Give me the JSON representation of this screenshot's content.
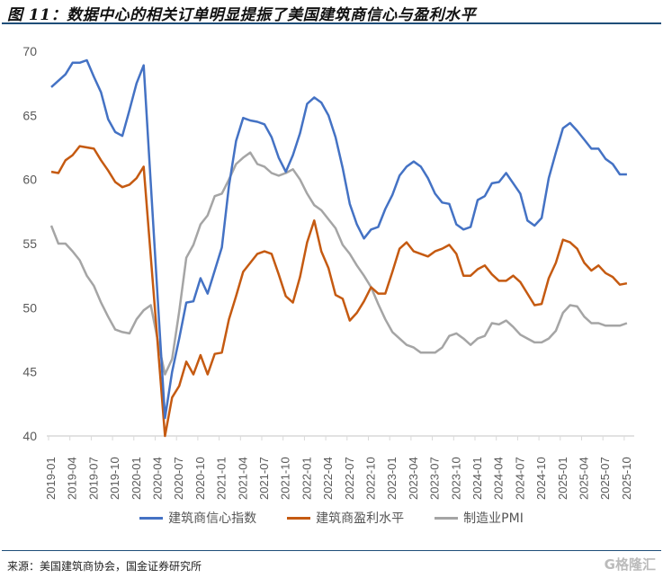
{
  "title": "图 11：数据中心的相关订单明显提振了美国建筑商信心与盈利水平",
  "source": "来源：美国建筑商协会，国金证券研究所",
  "watermark": "格隆汇",
  "chart_data": {
    "type": "line",
    "title": "",
    "xlabel": "",
    "ylabel": "",
    "ylim": [
      40,
      70
    ],
    "yticks": [
      "40",
      "45",
      "50",
      "55",
      "60",
      "65",
      "70"
    ],
    "grid": false,
    "legend_position": "bottom",
    "x_start": "2019-01",
    "x_tick_labels": [
      "2019-01",
      "2019-04",
      "2019-07",
      "2019-10",
      "2020-01",
      "2020-04",
      "2020-07",
      "2020-10",
      "2021-01",
      "2021-04",
      "2021-07",
      "2021-10",
      "2022-01",
      "2022-04",
      "2022-07",
      "2022-10",
      "2023-01",
      "2023-04",
      "2023-07",
      "2023-10",
      "2024-01",
      "2024-04",
      "2024-07",
      "2024-10",
      "2025-01",
      "2025-04",
      "2025-07",
      "2025-10"
    ],
    "series": [
      {
        "name": "建筑商信心指数",
        "color": "#4472C4",
        "values": [
          67.2,
          67.7,
          68.2,
          69.1,
          69.1,
          69.3,
          68.0,
          66.8,
          64.7,
          63.7,
          63.4,
          65.4,
          67.5,
          68.9,
          59.7,
          50.5,
          41.4,
          45.0,
          47.6,
          50.4,
          50.5,
          52.3,
          51.1,
          52.9,
          54.7,
          59.5,
          63.0,
          64.8,
          64.6,
          64.5,
          64.3,
          63.3,
          61.7,
          60.6,
          61.9,
          63.6,
          65.9,
          66.4,
          66.0,
          65.0,
          63.3,
          60.9,
          58.1,
          56.5,
          55.4,
          56.1,
          56.3,
          57.7,
          58.8,
          60.3,
          61.0,
          61.4,
          61.0,
          60.1,
          58.9,
          58.2,
          58.1,
          56.5,
          56.1,
          56.3,
          58.4,
          58.7,
          59.7,
          59.8,
          60.5,
          59.7,
          58.9,
          56.8,
          56.4,
          57.0,
          60.1,
          62.1,
          64.0,
          64.4,
          63.8,
          63.1,
          62.4,
          62.4,
          61.6,
          61.2,
          60.4,
          60.4
        ]
      },
      {
        "name": "建筑商盈利水平",
        "color": "#C55A11",
        "values": [
          60.6,
          60.5,
          61.5,
          61.9,
          62.6,
          62.5,
          62.4,
          61.5,
          60.7,
          59.8,
          59.4,
          59.6,
          60.1,
          61.0,
          54.0,
          47.0,
          40.0,
          43.0,
          43.9,
          45.8,
          44.8,
          46.3,
          44.8,
          46.4,
          46.5,
          49.1,
          50.9,
          52.8,
          53.5,
          54.2,
          54.4,
          54.2,
          52.6,
          50.9,
          50.4,
          52.4,
          55.1,
          56.8,
          54.4,
          53.1,
          51.0,
          50.7,
          49.0,
          49.6,
          50.5,
          51.6,
          51.1,
          51.1,
          52.8,
          54.6,
          55.1,
          54.4,
          54.2,
          54.0,
          54.4,
          54.6,
          54.9,
          54.2,
          52.5,
          52.5,
          53.0,
          53.3,
          52.6,
          52.1,
          52.1,
          52.5,
          52.0,
          51.1,
          50.2,
          50.3,
          52.3,
          53.5,
          55.3,
          55.1,
          54.6,
          53.5,
          52.9,
          53.3,
          52.7,
          52.4,
          51.8,
          51.9
        ]
      },
      {
        "name": "制造业PMI",
        "color": "#A5A5A5",
        "values": [
          56.4,
          55.0,
          55.0,
          54.4,
          53.7,
          52.5,
          51.7,
          50.4,
          49.3,
          48.3,
          48.1,
          48.0,
          49.1,
          49.8,
          50.2,
          47.4,
          44.8,
          46.0,
          49.7,
          53.9,
          54.9,
          56.5,
          57.2,
          58.7,
          58.9,
          60.0,
          61.2,
          61.7,
          62.1,
          61.2,
          61.0,
          60.5,
          60.3,
          60.5,
          60.8,
          60.0,
          58.9,
          58.0,
          57.6,
          56.9,
          56.2,
          54.9,
          54.2,
          53.3,
          52.5,
          51.6,
          50.3,
          49.1,
          48.1,
          47.6,
          47.1,
          46.9,
          46.5,
          46.5,
          46.5,
          46.9,
          47.8,
          48.0,
          47.6,
          47.1,
          47.6,
          47.8,
          48.8,
          48.7,
          49.0,
          48.5,
          47.9,
          47.6,
          47.3,
          47.3,
          47.6,
          48.2,
          49.6,
          50.2,
          50.1,
          49.3,
          48.8,
          48.8,
          48.6,
          48.6,
          48.6,
          48.8
        ]
      }
    ]
  }
}
